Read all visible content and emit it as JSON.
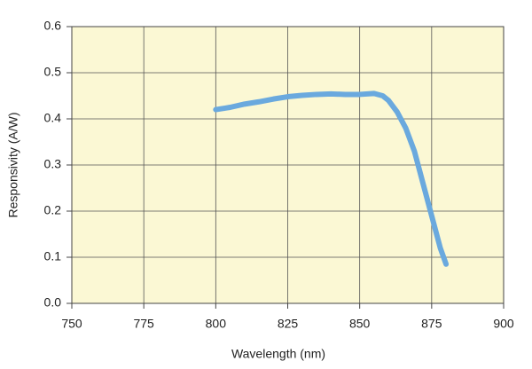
{
  "chart_data": {
    "type": "line",
    "x_label": "Wavelength (nm)",
    "y_label": "Responsivity (A/W)",
    "x": [
      800,
      805,
      810,
      815,
      820,
      825,
      830,
      835,
      840,
      845,
      850,
      855,
      858,
      860,
      863,
      866,
      869,
      872,
      875,
      878,
      880
    ],
    "series": [
      {
        "color": "#6aa9de",
        "values": [
          0.42,
          0.425,
          0.432,
          0.437,
          0.443,
          0.448,
          0.451,
          0.453,
          0.454,
          0.453,
          0.453,
          0.455,
          0.45,
          0.44,
          0.415,
          0.38,
          0.33,
          0.26,
          0.19,
          0.12,
          0.085
        ]
      }
    ],
    "xlim": [
      750,
      900
    ],
    "xticks": [
      750,
      775,
      800,
      825,
      850,
      875,
      900
    ],
    "ylim": [
      0,
      0.6
    ],
    "yticks": [
      {
        "value": 0,
        "label": "0.0"
      },
      0.1,
      0.2,
      0.3,
      0.4,
      0.5,
      0.6
    ],
    "grid": true,
    "background": "#fbf8d4"
  }
}
